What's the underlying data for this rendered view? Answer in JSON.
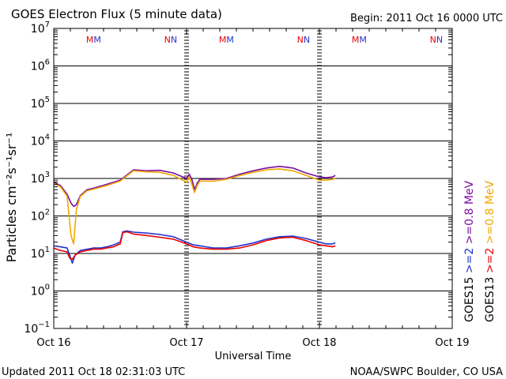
{
  "chart_data": {
    "type": "line",
    "title": "GOES Electron Flux (5 minute data)",
    "begin_label": "Begin: 2011 Oct 16 0000 UTC",
    "xlabel": "Universal Time",
    "ylabel": "Particles cm⁻²s⁻¹sr⁻¹",
    "x_unit": "days since 2011 Oct 16 0000 UTC",
    "xlim": [
      0,
      3
    ],
    "x_ticks": [
      {
        "value": 0,
        "label": "Oct 16"
      },
      {
        "value": 1,
        "label": "Oct 17"
      },
      {
        "value": 2,
        "label": "Oct 18"
      },
      {
        "value": 3,
        "label": "Oct 19"
      }
    ],
    "y_scale": "log",
    "ylim_exponent": [
      -1,
      7
    ],
    "y_ticks": [
      {
        "exp": 7,
        "label": "10",
        "sup": "7"
      },
      {
        "exp": 6,
        "label": "10",
        "sup": "6"
      },
      {
        "exp": 5,
        "label": "10",
        "sup": "5"
      },
      {
        "exp": 4,
        "label": "10",
        "sup": "4"
      },
      {
        "exp": 3,
        "label": "10",
        "sup": "3"
      },
      {
        "exp": 2,
        "label": "10",
        "sup": "2"
      },
      {
        "exp": 1,
        "label": "10",
        "sup": "1"
      },
      {
        "exp": 0,
        "label": "10",
        "sup": "0"
      },
      {
        "exp": -1,
        "label": "10",
        "sup": "−1"
      }
    ],
    "grid": true,
    "threshold_exponent": 3,
    "markers": [
      {
        "x": 0.3,
        "label": "M",
        "second_label": "M"
      },
      {
        "x": 0.88,
        "label": "N",
        "second_label": "N"
      },
      {
        "x": 1.3,
        "label": "M",
        "second_label": "M"
      },
      {
        "x": 1.88,
        "label": "N",
        "second_label": "N"
      },
      {
        "x": 2.3,
        "label": "M",
        "second_label": "M"
      },
      {
        "x": 2.88,
        "label": "N",
        "second_label": "N"
      }
    ],
    "legend_position": "right",
    "legend": [
      {
        "prefix": "GOES15",
        "label": ">=2",
        "label2": ">=0.8 MeV",
        "color": "#2233cc",
        "color2": "#7a0fa0"
      },
      {
        "prefix": "GOES13",
        "label": ">=2",
        "label2": ">=0.8 MeV",
        "color": "#ee0000",
        "color2": "#f0a800"
      }
    ],
    "series": [
      {
        "name": "GOES15 >=0.8 MeV",
        "color": "#7a0fa0",
        "x": [
          0,
          0.05,
          0.1,
          0.13,
          0.15,
          0.17,
          0.2,
          0.25,
          0.3,
          0.4,
          0.5,
          0.6,
          0.7,
          0.8,
          0.9,
          1.0,
          1.02,
          1.04,
          1.06,
          1.08,
          1.1,
          1.2,
          1.3,
          1.4,
          1.5,
          1.6,
          1.7,
          1.8,
          1.9,
          2.0,
          2.05,
          2.1,
          2.12
        ],
        "values": [
          800,
          650,
          380,
          220,
          180,
          200,
          350,
          500,
          550,
          700,
          900,
          1700,
          1600,
          1650,
          1400,
          1000,
          1300,
          950,
          500,
          750,
          950,
          950,
          1000,
          1300,
          1600,
          1900,
          2100,
          1900,
          1400,
          1100,
          1050,
          1100,
          1200
        ]
      },
      {
        "name": "GOES13 >=0.8 MeV",
        "color": "#f0a800",
        "x": [
          0,
          0.05,
          0.1,
          0.13,
          0.15,
          0.17,
          0.2,
          0.25,
          0.3,
          0.4,
          0.5,
          0.6,
          0.7,
          0.8,
          0.9,
          1.0,
          1.02,
          1.04,
          1.06,
          1.08,
          1.1,
          1.2,
          1.3,
          1.4,
          1.5,
          1.6,
          1.7,
          1.8,
          1.9,
          2.0,
          2.05,
          2.1,
          2.12
        ],
        "values": [
          750,
          600,
          340,
          30,
          18,
          150,
          330,
          470,
          520,
          650,
          850,
          1600,
          1500,
          1450,
          1200,
          800,
          1100,
          700,
          420,
          650,
          850,
          850,
          950,
          1200,
          1450,
          1700,
          1800,
          1600,
          1200,
          900,
          900,
          950,
          1000
        ]
      },
      {
        "name": "GOES15 >=2 MeV",
        "color": "#2233cc",
        "x": [
          0,
          0.05,
          0.1,
          0.12,
          0.14,
          0.16,
          0.2,
          0.25,
          0.3,
          0.35,
          0.4,
          0.45,
          0.5,
          0.52,
          0.55,
          0.6,
          0.7,
          0.8,
          0.9,
          1.0,
          1.05,
          1.1,
          1.2,
          1.3,
          1.4,
          1.5,
          1.6,
          1.7,
          1.8,
          1.9,
          2.0,
          2.05,
          2.1,
          2.12
        ],
        "values": [
          16,
          15,
          14,
          9,
          5.5,
          9,
          12,
          13,
          14,
          14,
          15,
          17,
          20,
          38,
          40,
          37,
          35,
          32,
          28,
          20,
          17,
          16,
          14,
          14,
          16,
          19,
          24,
          28,
          29,
          25,
          20,
          18,
          18,
          19
        ]
      },
      {
        "name": "GOES13 >=2 MeV",
        "color": "#ee0000",
        "x": [
          0,
          0.05,
          0.1,
          0.12,
          0.14,
          0.16,
          0.2,
          0.25,
          0.3,
          0.35,
          0.4,
          0.45,
          0.5,
          0.52,
          0.55,
          0.6,
          0.7,
          0.8,
          0.9,
          1.0,
          1.05,
          1.1,
          1.2,
          1.3,
          1.4,
          1.5,
          1.6,
          1.7,
          1.8,
          1.9,
          2.0,
          2.05,
          2.1,
          2.12
        ],
        "values": [
          14,
          12,
          11,
          7.5,
          7,
          9,
          11,
          12,
          13,
          13,
          14,
          15,
          18,
          36,
          38,
          33,
          30,
          27,
          24,
          18,
          15,
          14,
          13,
          13,
          14,
          17,
          22,
          26,
          27,
          22,
          17,
          16,
          15,
          16
        ]
      }
    ]
  },
  "footer": {
    "updated": "Updated 2011 Oct 18 02:31:03 UTC",
    "credit": "NOAA/SWPC Boulder, CO USA"
  }
}
